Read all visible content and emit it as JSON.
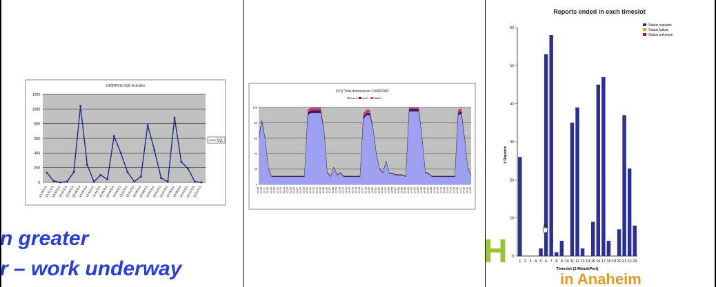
{
  "slide_text": {
    "line1": "n greater",
    "line2": "r – work underway"
  },
  "logo": {
    "letters": "SH",
    "tagline": "in Anaheim"
  },
  "chart_data": [
    {
      "type": "line",
      "title": "LI00RP01# SQL Activities",
      "legend": [
        "SQL"
      ],
      "legend_position": "right",
      "ylim": [
        0,
        1200
      ],
      "yticks": [
        0,
        200,
        400,
        600,
        800,
        1000,
        1200
      ],
      "grid": true,
      "x": [
        "13:30:0.0",
        "13:31:0.0",
        "13:32:0.0",
        "13:34:0.0",
        "13:36:0.0",
        "13:38:0.0",
        "13:40:0.0",
        "13:42:0.0",
        "13:44:0.0",
        "13:46:0.0",
        "13:48:0.0",
        "13:50:0.0",
        "13:52:0.0",
        "13:54:0.0",
        "13:56:0.0",
        "13:58:0.0",
        "14:00:0.0",
        "14:02:0.0",
        "14:04:0.0",
        "14:06:0.0",
        "14:08:0.0",
        "14:10:0.0",
        "14:12:0.0",
        "14:14:0.0"
      ],
      "series": [
        {
          "name": "SQL",
          "color": "#1a2a8a",
          "values": [
            130,
            20,
            0,
            10,
            140,
            1040,
            240,
            10,
            100,
            40,
            630,
            400,
            140,
            10,
            80,
            780,
            440,
            60,
            10,
            880,
            280,
            190,
            10,
            0
          ]
        }
      ]
    },
    {
      "type": "area",
      "title": "CPU Total demoserver 13/08/2009",
      "legend": [
        "user%",
        "sys%",
        "Wait%"
      ],
      "legend_position": "top",
      "ylim": [
        0,
        100
      ],
      "grid": true,
      "x": [
        "13:15",
        "13:16",
        "13:17",
        "13:18",
        "13:19",
        "13:20",
        "13:21",
        "13:22",
        "13:23",
        "13:24",
        "13:25",
        "13:26",
        "13:27",
        "13:28",
        "13:29",
        "13:30",
        "13:31",
        "13:32",
        "13:33",
        "13:34",
        "13:35",
        "13:36",
        "13:37",
        "13:38",
        "13:39",
        "13:40",
        "13:41",
        "13:42",
        "13:43",
        "13:44",
        "13:45",
        "13:46",
        "13:47",
        "13:48",
        "13:49",
        "13:50",
        "13:51",
        "13:52",
        "13:53",
        "13:54",
        "13:55",
        "13:56",
        "13:57",
        "13:58",
        "13:59",
        "14:00",
        "14:01",
        "14:02",
        "14:03",
        "14:04",
        "14:05",
        "14:06",
        "14:07",
        "14:08",
        "14:09",
        "14:10",
        "14:11",
        "14:12",
        "14:13",
        "14:14",
        "14:15",
        "14:16",
        "14:17",
        "14:18",
        "14:19",
        "14:20"
      ],
      "series": [
        {
          "name": "user%",
          "color": "#9d9ff0",
          "values": [
            60,
            82,
            58,
            20,
            10,
            10,
            10,
            10,
            10,
            10,
            10,
            10,
            10,
            10,
            10,
            90,
            93,
            93,
            93,
            93,
            70,
            15,
            10,
            22,
            12,
            15,
            10,
            10,
            10,
            10,
            10,
            10,
            85,
            90,
            90,
            72,
            40,
            20,
            15,
            30,
            14,
            14,
            12,
            12,
            12,
            10,
            95,
            95,
            95,
            95,
            60,
            15,
            14,
            10,
            10,
            10,
            10,
            10,
            10,
            10,
            10,
            90,
            92,
            60,
            20,
            12
          ]
        },
        {
          "name": "sys%",
          "color": "#4a1060",
          "values": [
            2,
            2,
            2,
            1,
            1,
            1,
            1,
            1,
            1,
            1,
            1,
            1,
            1,
            1,
            1,
            3,
            3,
            3,
            3,
            3,
            2,
            1,
            1,
            1,
            1,
            1,
            1,
            1,
            1,
            1,
            1,
            1,
            3,
            3,
            3,
            2,
            1,
            1,
            1,
            1,
            1,
            1,
            1,
            1,
            1,
            1,
            3,
            3,
            3,
            3,
            2,
            1,
            1,
            1,
            1,
            1,
            1,
            1,
            1,
            1,
            1,
            3,
            3,
            2,
            1,
            1
          ]
        },
        {
          "name": "Wait%",
          "color": "#b04a6a",
          "values": [
            0,
            0,
            0,
            0,
            0,
            0,
            0,
            0,
            0,
            0,
            0,
            0,
            0,
            0,
            0,
            4,
            4,
            4,
            4,
            4,
            0,
            0,
            0,
            0,
            0,
            0,
            0,
            0,
            0,
            0,
            0,
            0,
            4,
            4,
            4,
            0,
            0,
            0,
            0,
            0,
            0,
            0,
            0,
            0,
            0,
            0,
            4,
            4,
            4,
            4,
            0,
            0,
            0,
            0,
            0,
            0,
            0,
            0,
            0,
            0,
            0,
            4,
            4,
            0,
            0,
            0
          ]
        }
      ]
    },
    {
      "type": "bar",
      "title": "Reports ended in each timeslot",
      "xlabel": "Timeslot (2-MinutePart)",
      "ylabel": "# Reports",
      "ylim": [
        0,
        60
      ],
      "yticks": [
        0,
        10,
        20,
        30,
        40,
        50,
        60
      ],
      "legend": [
        "Status success",
        "Status failure",
        "Status unknown"
      ],
      "legend_position": "top-right",
      "legend_colors": [
        "#2b2f8f",
        "#e0a020",
        "#a02020"
      ],
      "categories": [
        "1",
        "2",
        "3",
        "4",
        "5",
        "6",
        "7",
        "8",
        "9",
        "10",
        "11",
        "12",
        "13",
        "14",
        "15",
        "16",
        "17",
        "18",
        "19",
        "20",
        "21",
        "22",
        "23"
      ],
      "series": [
        {
          "name": "Status success",
          "color": "#2b2f8f",
          "values": [
            26,
            0,
            0,
            0,
            2,
            53,
            58,
            1,
            4,
            0,
            35,
            39,
            2,
            0,
            9,
            45,
            47,
            4,
            0,
            7,
            37,
            23,
            8
          ]
        }
      ]
    }
  ]
}
